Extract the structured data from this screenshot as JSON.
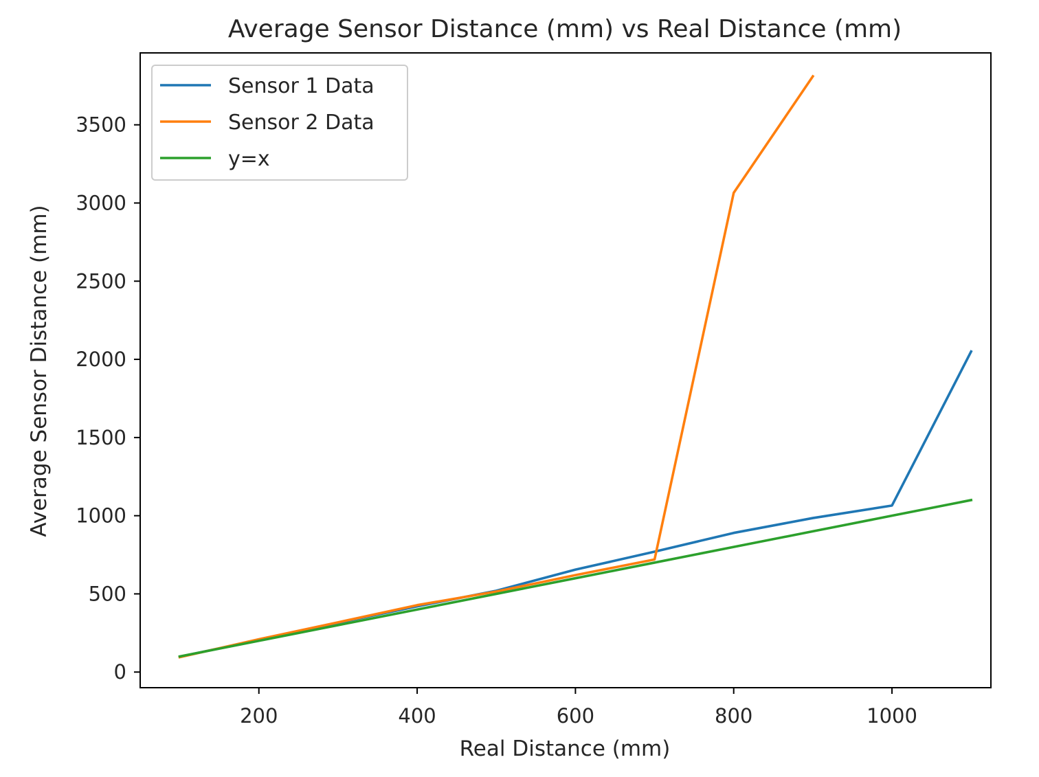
{
  "chart_data": {
    "type": "line",
    "title": "Average Sensor Distance (mm) vs Real Distance (mm)",
    "xlabel": "Real Distance (mm)",
    "ylabel": "Average Sensor Distance (mm)",
    "xlim": [
      50,
      1125
    ],
    "ylim": [
      -100,
      3960
    ],
    "xticks": [
      200,
      400,
      600,
      800,
      1000
    ],
    "yticks": [
      0,
      500,
      1000,
      1500,
      2000,
      2500,
      3000,
      3500
    ],
    "grid": false,
    "legend_position": "upper-left",
    "series": [
      {
        "name": "Sensor 1 Data",
        "color": "#1f77b4",
        "x": [
          100,
          200,
          300,
          400,
          500,
          600,
          700,
          800,
          900,
          1000,
          1100
        ],
        "y": [
          98,
          205,
          315,
          420,
          520,
          655,
          770,
          890,
          985,
          1065,
          2050
        ]
      },
      {
        "name": "Sensor 2 Data",
        "color": "#ff7f0e",
        "x": [
          100,
          200,
          300,
          400,
          500,
          600,
          700,
          800,
          900
        ],
        "y": [
          95,
          210,
          318,
          428,
          515,
          620,
          720,
          3065,
          3810
        ]
      },
      {
        "name": "y=x",
        "color": "#2ca02c",
        "x": [
          100,
          200,
          300,
          400,
          500,
          600,
          700,
          800,
          900,
          1000,
          1100
        ],
        "y": [
          100,
          200,
          300,
          400,
          500,
          600,
          700,
          800,
          900,
          1000,
          1100
        ]
      }
    ]
  }
}
